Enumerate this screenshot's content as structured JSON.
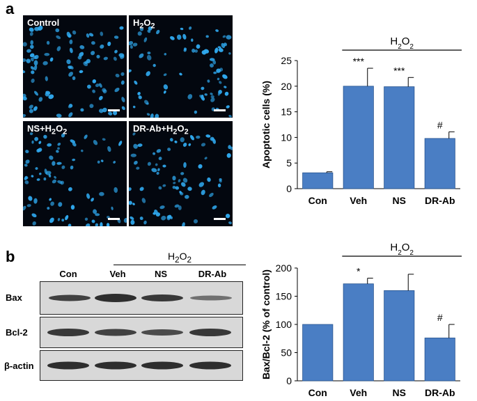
{
  "panel_a": {
    "letter": "a",
    "micrographs": [
      {
        "label_main": "Control",
        "label_sub": "",
        "label_tail": ""
      },
      {
        "label_main": "H",
        "label_sub": "2",
        "label_mid": "O",
        "label_sub2": "2",
        "label_tail": ""
      },
      {
        "label_main": "NS+H",
        "label_sub": "2",
        "label_mid": "O",
        "label_sub2": "2",
        "label_tail": ""
      },
      {
        "label_main": "DR-Ab+H",
        "label_sub": "2",
        "label_mid": "O",
        "label_sub2": "2",
        "label_tail": ""
      }
    ],
    "nucleus_color": "#2fa8ee"
  },
  "panel_b": {
    "letter": "b",
    "treatment": {
      "main": "H",
      "sub": "2",
      "mid": "O",
      "sub2": "2"
    },
    "lanes": [
      "Con",
      "Veh",
      "NS",
      "DR-Ab"
    ],
    "rows": [
      "Bax",
      "Bcl-2",
      "β-actin"
    ]
  },
  "chart_data": [
    {
      "type": "bar",
      "categories": [
        "Con",
        "Veh",
        "NS",
        "DR-Ab"
      ],
      "values": [
        3.1,
        20.0,
        19.9,
        9.8
      ],
      "errors": [
        0.2,
        3.5,
        1.8,
        1.3
      ],
      "annotations": [
        "",
        "***",
        "***",
        "#"
      ],
      "ylabel": "Apoptotic cells (%)",
      "ylim": [
        0,
        25
      ],
      "yticks": [
        0,
        5,
        10,
        15,
        20,
        25
      ],
      "bracket_label": {
        "main": "H",
        "sub": "2",
        "mid": "O",
        "sub2": "2"
      },
      "bar_color": "#4a7ec4",
      "grid": false
    },
    {
      "type": "bar",
      "categories": [
        "Con",
        "Veh",
        "NS",
        "DR-Ab"
      ],
      "values": [
        100,
        172,
        160,
        76
      ],
      "errors": [
        0,
        10,
        29,
        24
      ],
      "annotations": [
        "",
        "*",
        "",
        "#"
      ],
      "ylabel": "Bax/Bcl-2  (% of control)",
      "ylim": [
        0,
        200
      ],
      "yticks": [
        0,
        50,
        100,
        150,
        200
      ],
      "bracket_label": {
        "main": "H",
        "sub": "2",
        "mid": "O",
        "sub2": "2"
      },
      "bar_color": "#4a7ec4",
      "grid": false
    }
  ]
}
